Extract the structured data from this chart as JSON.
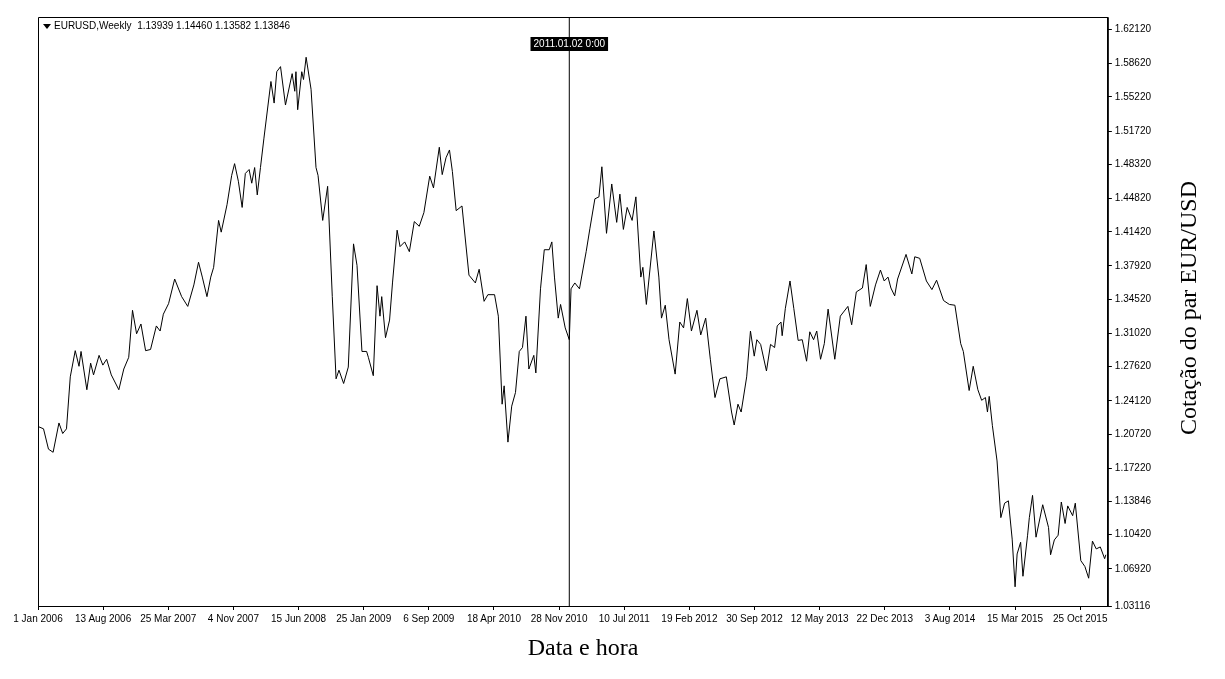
{
  "chart_data": {
    "type": "line",
    "title": "EURUSD,Weekly  1.13939 1.14460 1.13582 1.13846",
    "xlabel": "Data e hora",
    "ylabel": "Cotação do par EUR/USD",
    "xlim": [
      "2006-01-01",
      "2016-01-28"
    ],
    "xticks": [
      {
        "value": "2006-01-01",
        "label": "1 Jan 2006"
      },
      {
        "value": "2006-08-13",
        "label": "13 Aug 2006"
      },
      {
        "value": "2007-03-25",
        "label": "25 Mar 2007"
      },
      {
        "value": "2007-11-04",
        "label": "4 Nov 2007"
      },
      {
        "value": "2008-06-15",
        "label": "15 Jun 2008"
      },
      {
        "value": "2009-01-25",
        "label": "25 Jan 2009"
      },
      {
        "value": "2009-09-06",
        "label": "6 Sep 2009"
      },
      {
        "value": "2010-04-18",
        "label": "18 Apr 2010"
      },
      {
        "value": "2010-11-28",
        "label": "28 Nov 2010"
      },
      {
        "value": "2011-07-10",
        "label": "10 Jul 2011"
      },
      {
        "value": "2012-02-19",
        "label": "19 Feb 2012"
      },
      {
        "value": "2012-09-30",
        "label": "30 Sep 2012"
      },
      {
        "value": "2013-05-12",
        "label": "12 May 2013"
      },
      {
        "value": "2013-12-22",
        "label": "22 Dec 2013"
      },
      {
        "value": "2014-08-03",
        "label": "3 Aug 2014"
      },
      {
        "value": "2015-03-15",
        "label": "15 Mar 2015"
      },
      {
        "value": "2015-10-25",
        "label": "25 Oct 2015"
      }
    ],
    "ylim": [
      1.03116,
      1.634
    ],
    "yticks": [
      {
        "value": 1.03116,
        "label": "1.03116"
      },
      {
        "value": 1.0692,
        "label": "1.06920"
      },
      {
        "value": 1.1042,
        "label": "1.10420"
      },
      {
        "value": 1.13846,
        "label": "1.13846"
      },
      {
        "value": 1.1722,
        "label": "1.17220"
      },
      {
        "value": 1.2072,
        "label": "1.20720"
      },
      {
        "value": 1.2412,
        "label": "1.24120"
      },
      {
        "value": 1.2762,
        "label": "1.27620"
      },
      {
        "value": 1.3102,
        "label": "1.31020"
      },
      {
        "value": 1.3452,
        "label": "1.34520"
      },
      {
        "value": 1.3792,
        "label": "1.37920"
      },
      {
        "value": 1.4142,
        "label": "1.41420"
      },
      {
        "value": 1.4482,
        "label": "1.44820"
      },
      {
        "value": 1.4832,
        "label": "1.48320"
      },
      {
        "value": 1.5172,
        "label": "1.51720"
      },
      {
        "value": 1.5522,
        "label": "1.55220"
      },
      {
        "value": 1.5862,
        "label": "1.58620"
      },
      {
        "value": 1.6212,
        "label": "1.62120"
      }
    ],
    "ref_lines": [
      {
        "axis": "x",
        "value": "2011-01-02",
        "label": "2011.01.02 0:00"
      }
    ],
    "x": [
      "2006-01-01",
      "2006-01-20",
      "2006-02-06",
      "2006-02-22",
      "2006-03-14",
      "2006-03-27",
      "2006-04-09",
      "2006-04-22",
      "2006-05-09",
      "2006-05-22",
      "2006-05-29",
      "2006-06-18",
      "2006-07-01",
      "2006-07-11",
      "2006-07-30",
      "2006-08-12",
      "2006-08-25",
      "2006-09-10",
      "2006-10-06",
      "2006-10-23",
      "2006-11-09",
      "2006-11-22",
      "2006-12-06",
      "2006-12-21",
      "2007-01-06",
      "2007-01-23",
      "2007-02-12",
      "2007-02-25",
      "2007-03-08",
      "2007-03-26",
      "2007-04-16",
      "2007-05-10",
      "2007-05-31",
      "2007-06-21",
      "2007-07-07",
      "2007-07-20",
      "2007-08-05",
      "2007-08-18",
      "2007-08-28",
      "2007-09-14",
      "2007-09-23",
      "2007-10-13",
      "2007-10-29",
      "2007-11-08",
      "2007-11-21",
      "2007-12-04",
      "2007-12-15",
      "2007-12-28",
      "2008-01-06",
      "2008-01-16",
      "2008-01-25",
      "2008-02-05",
      "2008-02-17",
      "2008-03-12",
      "2008-03-23",
      "2008-04-01",
      "2008-04-14",
      "2008-05-01",
      "2008-05-24",
      "2008-06-02",
      "2008-06-06",
      "2008-06-12",
      "2008-06-26",
      "2008-07-02",
      "2008-07-11",
      "2008-07-28",
      "2008-08-14",
      "2008-08-21",
      "2008-09-06",
      "2008-09-23",
      "2008-10-09",
      "2008-10-22",
      "2008-11-01",
      "2008-11-17",
      "2008-12-03",
      "2008-12-21",
      "2009-01-02",
      "2009-01-19",
      "2009-02-04",
      "2009-02-10",
      "2009-02-27",
      "2009-03-12",
      "2009-03-22",
      "2009-03-28",
      "2009-04-10",
      "2009-04-24",
      "2009-05-04",
      "2009-05-20",
      "2009-05-30",
      "2009-06-15",
      "2009-07-01",
      "2009-07-18",
      "2009-08-04",
      "2009-08-20",
      "2009-09-09",
      "2009-09-22",
      "2009-10-12",
      "2009-10-22",
      "2009-11-04",
      "2009-11-16",
      "2009-11-26",
      "2009-12-09",
      "2009-12-29",
      "2010-01-22",
      "2010-02-13",
      "2010-02-26",
      "2010-03-15",
      "2010-03-28",
      "2010-04-20",
      "2010-05-03",
      "2010-05-16",
      "2010-05-23",
      "2010-06-05",
      "2010-06-18",
      "2010-07-01",
      "2010-07-14",
      "2010-07-25",
      "2010-08-06",
      "2010-08-16",
      "2010-09-02",
      "2010-09-09",
      "2010-09-25",
      "2010-10-08",
      "2010-10-25",
      "2010-11-03",
      "2010-11-12",
      "2010-11-25",
      "2010-12-03",
      "2010-12-19",
      "2011-01-02",
      "2011-01-08",
      "2011-01-21",
      "2011-02-06",
      "2011-03-01",
      "2011-03-14",
      "2011-03-31",
      "2011-04-14",
      "2011-04-24",
      "2011-05-10",
      "2011-05-28",
      "2011-06-14",
      "2011-06-25",
      "2011-07-07",
      "2011-07-20",
      "2011-08-06",
      "2011-08-19",
      "2011-09-05",
      "2011-09-12",
      "2011-09-24",
      "2011-10-20",
      "2011-11-06",
      "2011-11-15",
      "2011-11-28",
      "2011-12-11",
      "2012-01-01",
      "2012-01-17",
      "2012-01-30",
      "2012-02-12",
      "2012-02-26",
      "2012-03-16",
      "2012-03-29",
      "2012-04-15",
      "2012-05-01",
      "2012-05-17",
      "2012-06-03",
      "2012-06-25",
      "2012-07-13",
      "2012-07-22",
      "2012-08-04",
      "2012-08-15",
      "2012-09-03",
      "2012-09-16",
      "2012-09-29",
      "2012-10-08",
      "2012-10-21",
      "2012-11-10",
      "2012-11-24",
      "2012-12-08",
      "2012-12-17",
      "2012-12-30",
      "2013-01-03",
      "2013-01-14",
      "2013-01-30",
      "2013-02-12",
      "2013-02-27",
      "2013-03-13",
      "2013-03-28",
      "2013-04-08",
      "2013-04-21",
      "2013-05-02",
      "2013-05-15",
      "2013-05-28",
      "2013-06-10",
      "2013-07-03",
      "2013-07-22",
      "2013-08-17",
      "2013-08-30",
      "2013-09-15",
      "2013-10-06",
      "2013-10-19",
      "2013-11-02",
      "2013-11-20",
      "2013-12-07",
      "2013-12-20",
      "2014-01-02",
      "2014-01-12",
      "2014-01-25",
      "2014-02-04",
      "2014-03-05",
      "2014-03-25",
      "2014-04-04",
      "2014-04-21",
      "2014-05-14",
      "2014-06-02",
      "2014-06-18",
      "2014-07-12",
      "2014-08-01",
      "2014-08-20",
      "2014-09-09",
      "2014-09-18",
      "2014-10-08",
      "2014-10-22",
      "2014-11-07",
      "2014-11-20",
      "2014-12-03",
      "2014-12-10",
      "2014-12-16",
      "2014-12-27",
      "2015-01-12",
      "2015-01-25",
      "2015-02-07",
      "2015-02-20",
      "2015-03-05",
      "2015-03-15",
      "2015-03-22",
      "2015-04-03",
      "2015-04-11",
      "2015-04-27",
      "2015-05-03",
      "2015-05-14",
      "2015-05-26",
      "2015-06-18",
      "2015-07-08",
      "2015-07-15",
      "2015-07-28",
      "2015-08-10",
      "2015-08-21",
      "2015-09-03",
      "2015-09-12",
      "2015-09-29",
      "2015-10-08",
      "2015-10-27",
      "2015-11-10",
      "2015-11-23",
      "2015-12-06",
      "2015-12-19",
      "2016-01-02",
      "2016-01-17",
      "2016-01-21"
    ],
    "series": [
      {
        "color": "#000000",
        "values": [
          1.2149,
          1.2125,
          1.1917,
          1.1885,
          1.2185,
          1.2077,
          1.2125,
          1.2657,
          1.2925,
          1.2765,
          1.2917,
          1.2525,
          1.2797,
          1.2677,
          1.2877,
          1.2777,
          1.2837,
          1.2677,
          1.2525,
          1.2737,
          1.2857,
          1.3338,
          1.3098,
          1.3198,
          1.2925,
          1.2937,
          1.3178,
          1.3126,
          1.3298,
          1.3406,
          1.3658,
          1.3478,
          1.3378,
          1.3598,
          1.383,
          1.3678,
          1.3478,
          1.3678,
          1.3778,
          1.4258,
          1.4138,
          1.4419,
          1.4719,
          1.4839,
          1.4659,
          1.4391,
          1.4739,
          1.4779,
          1.4639,
          1.4799,
          1.4519,
          1.4799,
          1.51,
          1.568,
          1.5459,
          1.578,
          1.5832,
          1.5439,
          1.576,
          1.558,
          1.578,
          1.5391,
          1.578,
          1.57,
          1.5928,
          1.56,
          1.4799,
          1.4719,
          1.4258,
          1.4607,
          1.3478,
          1.2637,
          1.2725,
          1.2589,
          1.2757,
          1.4018,
          1.3798,
          1.2917,
          1.2917,
          1.2857,
          1.2669,
          1.359,
          1.3278,
          1.3478,
          1.3058,
          1.3238,
          1.3618,
          1.4158,
          1.399,
          1.4038,
          1.3938,
          1.4246,
          1.4198,
          1.4338,
          1.4711,
          1.4591,
          1.5007,
          1.4727,
          1.4899,
          1.4979,
          1.4759,
          1.4358,
          1.4406,
          1.3698,
          1.3618,
          1.3758,
          1.343,
          1.3498,
          1.3498,
          1.3278,
          1.2377,
          1.2565,
          1.1989,
          1.2357,
          1.2497,
          1.2917,
          1.2957,
          1.3278,
          1.2737,
          1.2877,
          1.2697,
          1.3558,
          1.3958,
          1.3958,
          1.4038,
          1.3678,
          1.3258,
          1.3398,
          1.3158,
          1.3037,
          1.3558,
          1.3618,
          1.3558,
          1.3938,
          1.4178,
          1.4479,
          1.4499,
          1.4807,
          1.4126,
          1.4631,
          1.4238,
          1.4527,
          1.4166,
          1.4391,
          1.4258,
          1.4499,
          1.3678,
          1.3778,
          1.3398,
          1.415,
          1.3678,
          1.3258,
          1.339,
          1.3037,
          1.2685,
          1.3218,
          1.3158,
          1.3458,
          1.3126,
          1.3338,
          1.3086,
          1.3258,
          1.2837,
          1.2445,
          1.2637,
          1.2657,
          1.2297,
          1.2164,
          1.2377,
          1.2297,
          1.2657,
          1.3126,
          1.2869,
          1.3037,
          1.2989,
          1.2717,
          1.2989,
          1.2957,
          1.3178,
          1.3218,
          1.3078,
          1.3358,
          1.3638,
          1.3358,
          1.303,
          1.3037,
          1.2817,
          1.3118,
          1.3037,
          1.3126,
          1.2837,
          1.2997,
          1.335,
          1.2837,
          1.3278,
          1.3378,
          1.319,
          1.3526,
          1.3566,
          1.3806,
          1.3378,
          1.3598,
          1.375,
          1.3638,
          1.3678,
          1.3566,
          1.3486,
          1.3658,
          1.391,
          1.371,
          1.3886,
          1.387,
          1.3638,
          1.355,
          1.3646,
          1.3438,
          1.3398,
          1.339,
          1.2997,
          1.2917,
          1.2517,
          1.2765,
          1.2525,
          1.2417,
          1.2445,
          1.2297,
          1.2457,
          1.2157,
          1.1796,
          1.1216,
          1.1364,
          1.1388,
          1.0996,
          1.0508,
          1.0844,
          1.0964,
          1.0616,
          1.1036,
          1.1216,
          1.1444,
          1.1016,
          1.1348,
          1.1116,
          1.0836,
          1.0988,
          1.1036,
          1.1376,
          1.1156,
          1.1336,
          1.1236,
          1.1364,
          1.0776,
          1.0716,
          1.0596,
          1.0976,
          1.0896,
          1.0916,
          1.0796,
          1.0836
        ]
      }
    ]
  }
}
